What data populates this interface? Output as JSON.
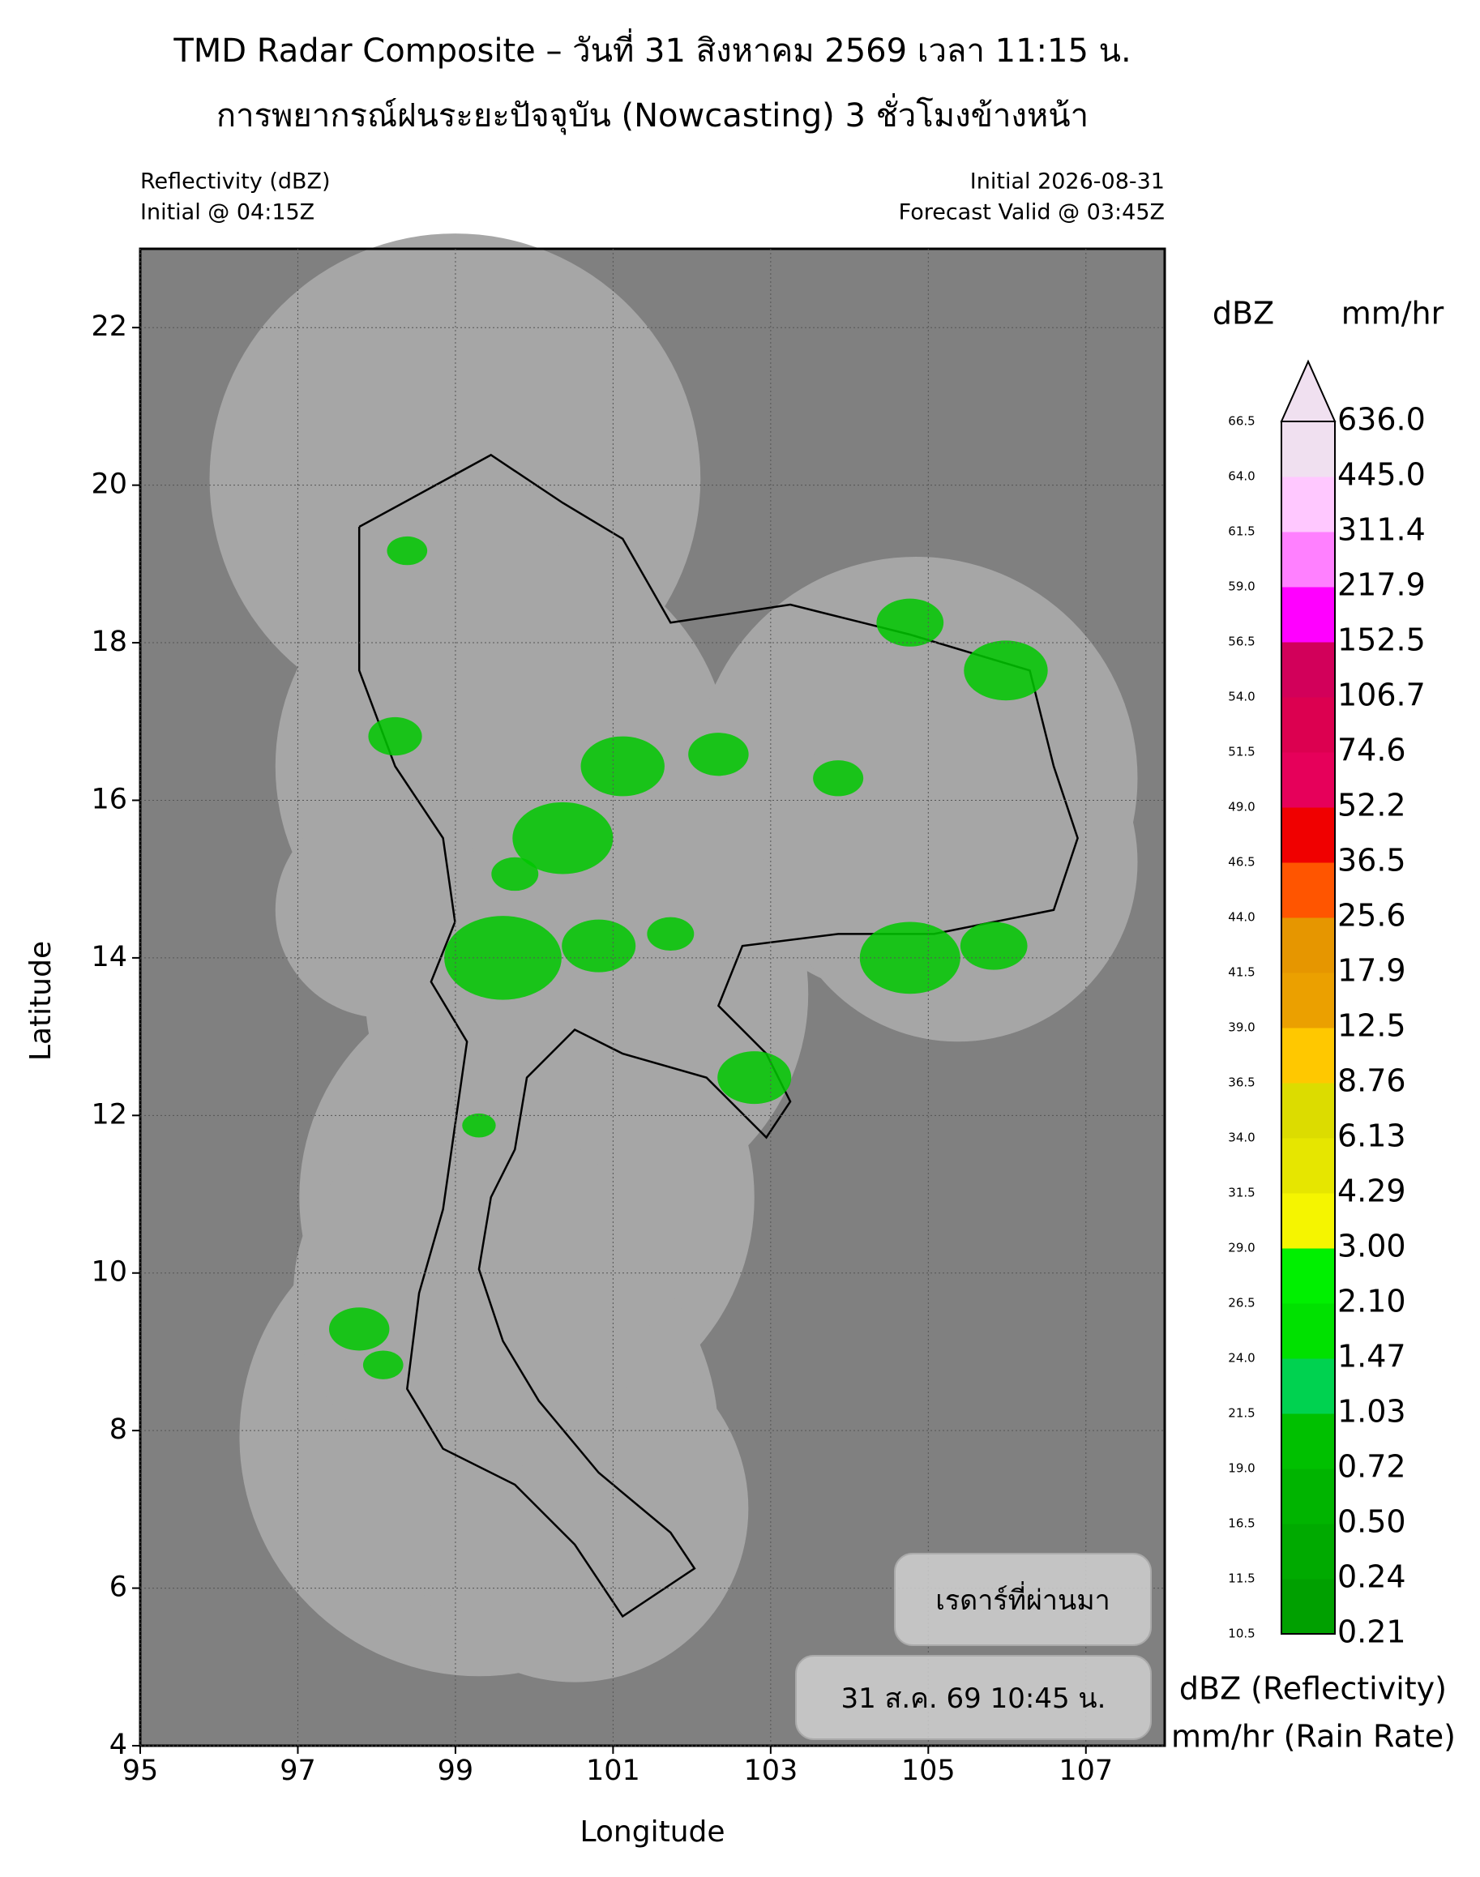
{
  "chart_data": {
    "type": "map",
    "title": "TMD Radar Composite – วันที่ 31 สิงหาคม 2569 เวลา 11:15 น.",
    "subtitle": "การพยากรณ์ฝนระยะปัจจุบัน (Nowcasting) 3 ชั่วโมงข้างหน้า",
    "header_left": [
      "Reflectivity (dBZ)",
      "Initial @ 04:15Z"
    ],
    "header_right": [
      "Initial 2026-08-31",
      "Forecast Valid @ 03:45Z"
    ],
    "x_label": "Longitude",
    "y_label": "Latitude",
    "xlim": [
      95,
      108
    ],
    "ylim": [
      4,
      23
    ],
    "xticks": [
      95,
      97,
      99,
      101,
      103,
      105,
      107
    ],
    "yticks": [
      4,
      6,
      8,
      10,
      12,
      14,
      16,
      18,
      20,
      22
    ],
    "colorbar": {
      "dbz_label": "dBZ",
      "rate_label": "mm/hr",
      "levels": [
        10.5,
        11.5,
        16.5,
        {
          "value": 19,
          "label": "19.0"
        },
        21.5,
        {
          "value": 24,
          "label": "24.0"
        },
        26.5,
        {
          "value": 29,
          "label": "29.0"
        },
        31.5,
        {
          "value": 34,
          "label": "34.0"
        },
        36.5,
        {
          "value": 39,
          "label": "39.0"
        },
        41.5,
        {
          "value": 44,
          "label": "44.0"
        },
        46.5,
        {
          "value": 49,
          "label": "49.0"
        },
        51.5,
        {
          "value": 54,
          "label": "54.0"
        },
        56.5,
        {
          "value": 59,
          "label": "59.0"
        },
        61.5,
        {
          "value": 64,
          "label": "64.0"
        },
        66.5
      ],
      "rates": [
        0.21,
        0.24,
        {
          "value": 0.5,
          "label": "0.50"
        },
        0.72,
        1.03,
        1.47,
        {
          "value": 2.1,
          "label": "2.10"
        },
        {
          "value": 3,
          "label": "3.00"
        },
        4.29,
        6.13,
        8.76,
        12.5,
        17.9,
        25.6,
        36.5,
        52.2,
        74.6,
        106.7,
        152.5,
        217.9,
        311.4,
        {
          "value": 445,
          "label": "445.0"
        },
        {
          "value": 636,
          "label": "636.0"
        }
      ],
      "colors": [
        "#00a000",
        "#00aa00",
        "#00b400",
        "#00c000",
        "#00d250",
        "#00e100",
        "#00f000",
        "#f5f500",
        "#e6e600",
        "#dcdc00",
        "#ffc800",
        "#eba000",
        "#e69600",
        "#ff5500",
        "#f00000",
        "#e6005a",
        "#dc0050",
        "#d2005a",
        "#ff00ff",
        "#ff80ff",
        "#ffc8ff",
        "#f0e0f0"
      ],
      "extend_color": "#f0e0f0",
      "footer": [
        "dBZ (Reflectivity)",
        "mm/hr (Rain Rate)"
      ]
    },
    "info_boxes": [
      "เรดาร์ที่ผ่านมา",
      "31 ส.ค. 69 10:45 น."
    ]
  }
}
